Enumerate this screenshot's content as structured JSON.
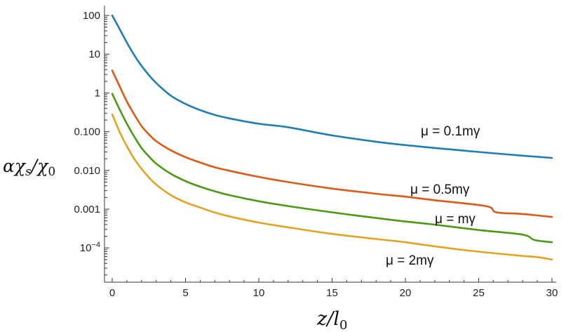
{
  "chart_data": {
    "type": "line",
    "xlabel": "z/l0",
    "ylabel": "αχs/χ0",
    "xlim": [
      0,
      30
    ],
    "ylim": [
      2e-05,
      250
    ],
    "y_scale": "log",
    "grid": false,
    "x_ticks": [
      0,
      5,
      10,
      15,
      20,
      25,
      30
    ],
    "x_tick_labels": [
      "0",
      "5",
      "10",
      "15",
      "20",
      "25",
      "30"
    ],
    "y_ticks": [
      0.0001,
      0.001,
      0.01,
      0.1,
      1,
      10,
      100
    ],
    "y_tick_labels": [
      "10−4",
      "0.001",
      "0.010",
      "0.100",
      "1",
      "10",
      "100"
    ],
    "series": [
      {
        "name": "μ = 0.1mγ",
        "color": "#1f7eb4",
        "x": [
          0,
          0.5,
          1,
          1.5,
          2,
          2.5,
          3,
          4,
          5,
          6,
          7,
          8,
          10,
          12,
          15,
          18,
          20,
          22,
          25,
          28,
          30
        ],
        "y": [
          100,
          45,
          20,
          9.5,
          5,
          2.9,
          1.8,
          0.85,
          0.52,
          0.36,
          0.27,
          0.22,
          0.16,
          0.13,
          0.08,
          0.055,
          0.045,
          0.038,
          0.03,
          0.024,
          0.021
        ]
      },
      {
        "name": "μ = 0.5mγ",
        "color": "#dd5a16",
        "x": [
          0,
          0.5,
          1,
          1.5,
          2,
          2.5,
          3,
          4,
          5,
          6,
          7,
          8,
          10,
          12,
          15,
          18,
          20,
          22,
          25.5,
          26.2,
          28,
          30
        ],
        "y": [
          3.8,
          1.5,
          0.6,
          0.28,
          0.14,
          0.085,
          0.057,
          0.033,
          0.022,
          0.016,
          0.012,
          0.0098,
          0.0068,
          0.005,
          0.0034,
          0.0025,
          0.0021,
          0.0017,
          0.0012,
          0.00083,
          0.00075,
          0.00063
        ]
      },
      {
        "name": "μ = mγ",
        "color": "#4a9a12",
        "x": [
          0,
          0.5,
          1,
          1.5,
          2,
          2.5,
          3,
          4,
          5,
          6,
          7,
          8,
          10,
          12,
          15,
          18,
          20,
          22,
          25,
          28,
          28.8,
          30
        ],
        "y": [
          0.95,
          0.38,
          0.16,
          0.075,
          0.038,
          0.023,
          0.015,
          0.0082,
          0.0053,
          0.0038,
          0.0029,
          0.0023,
          0.0016,
          0.0012,
          0.00083,
          0.00059,
          0.00048,
          0.0004,
          0.00029,
          0.00022,
          0.00016,
          0.00014
        ]
      },
      {
        "name": "μ = 2mγ",
        "color": "#e3a321",
        "x": [
          0,
          0.5,
          1,
          1.5,
          2,
          2.5,
          3,
          4,
          5,
          6,
          7,
          8,
          10,
          12,
          15,
          18,
          20,
          22,
          25,
          28,
          29,
          30
        ],
        "y": [
          0.28,
          0.1,
          0.042,
          0.02,
          0.011,
          0.0066,
          0.0043,
          0.0023,
          0.0015,
          0.0011,
          0.00082,
          0.00065,
          0.00045,
          0.00034,
          0.00023,
          0.00017,
          0.00014,
          0.00011,
          8e-05,
          6.2e-05,
          5.8e-05,
          5e-05
        ]
      }
    ]
  },
  "labels": {
    "series_0": "μ = 0.1mγ",
    "series_1": "μ = 0.5mγ",
    "series_2": "μ = mγ",
    "series_3": "μ = 2mγ"
  }
}
